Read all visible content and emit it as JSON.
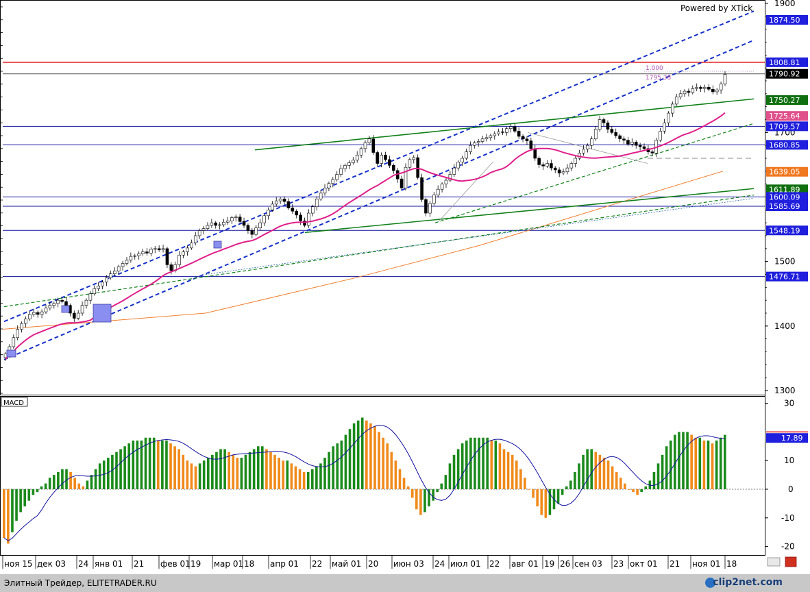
{
  "watermark": "Powered by XTick",
  "footer": {
    "site": "Элитный Трейдер, ELITETRADER.RU",
    "brand": "clip2net.com"
  },
  "panel_label": "MACD",
  "chart_data": [
    {
      "type": "candlestick",
      "title": "",
      "ylim": [
        1300,
        1900
      ],
      "y_ticks": [
        {
          "label": "1900",
          "value": 1900
        },
        {
          "label": "1700",
          "value": 1700
        },
        {
          "label": "1500",
          "value": 1500
        },
        {
          "label": "1400",
          "value": 1400
        },
        {
          "label": "1300",
          "value": 1300
        }
      ],
      "x_labels": [
        "ноя 15",
        "дек 03",
        "24",
        "янв 01",
        "21",
        "фев 01",
        "19",
        "мар 01",
        "18",
        "апр 01",
        "22",
        "май 01",
        "20",
        "июн 03",
        "24",
        "июл 01",
        "22",
        "авг 01",
        "19",
        "26",
        "сен 03",
        "23",
        "окт 01",
        "21",
        "ноя 01",
        "18"
      ],
      "price_levels": [
        {
          "value": 1874.5,
          "label": "1874.50",
          "color": "#1f1fdd",
          "line": false
        },
        {
          "value": 1808.81,
          "label": "1808.81",
          "color": "#1f1fdd",
          "line": true,
          "line_color": "#e01010"
        },
        {
          "value": 1790.92,
          "label": "1790.92",
          "color": "#000000",
          "line": true,
          "line_color": "#555555"
        },
        {
          "value": 1750.27,
          "label": "1750.27",
          "color": "#107010",
          "line": false
        },
        {
          "value": 1725.64,
          "label": "1725.64",
          "color": "#e0508a",
          "line": false
        },
        {
          "value": 1709.57,
          "label": "1709.57",
          "color": "#1f1fdd",
          "line": true,
          "line_color": "#1010a0"
        },
        {
          "value": 1680.85,
          "label": "1680.85",
          "color": "#1f1fdd",
          "line": true,
          "line_color": "#1010a0"
        },
        {
          "value": 1639.05,
          "label": "1639.05",
          "color": "#f07820",
          "line": false
        },
        {
          "value": 1611.89,
          "label": "1611.89",
          "color": "#107010",
          "line": false
        },
        {
          "value": 1600.09,
          "label": "1600.09",
          "color": "#1f1fdd",
          "line": true,
          "line_color": "#1010a0"
        },
        {
          "value": 1585.69,
          "label": "1585.69",
          "color": "#1f1fdd",
          "line": true,
          "line_color": "#1010a0"
        },
        {
          "value": 1548.19,
          "label": "1548.19",
          "color": "#1f1fdd",
          "line": true,
          "line_color": "#1010a0"
        },
        {
          "value": 1476.71,
          "label": "1476.71",
          "color": "#1f1fdd",
          "line": true,
          "line_color": "#1010a0"
        }
      ],
      "fib_labels": [
        "1.000",
        "1795.38"
      ],
      "close_series": [
        1357,
        1368,
        1382,
        1395,
        1404,
        1411,
        1418,
        1421,
        1418,
        1422,
        1428,
        1432,
        1435,
        1440,
        1438,
        1432,
        1420,
        1412,
        1420,
        1432,
        1440,
        1450,
        1458,
        1462,
        1468,
        1475,
        1481,
        1485,
        1492,
        1497,
        1502,
        1508,
        1509,
        1512,
        1515,
        1513,
        1519,
        1520,
        1518,
        1520,
        1495,
        1486,
        1495,
        1510,
        1515,
        1521,
        1529,
        1540,
        1548,
        1551,
        1556,
        1560,
        1556,
        1557,
        1561,
        1563,
        1568,
        1569,
        1562,
        1556,
        1548,
        1542,
        1552,
        1560,
        1571,
        1580,
        1589,
        1594,
        1597,
        1593,
        1583,
        1578,
        1572,
        1563,
        1556,
        1575,
        1585,
        1597,
        1606,
        1614,
        1621,
        1627,
        1635,
        1644,
        1649,
        1653,
        1657,
        1665,
        1675,
        1684,
        1690,
        1669,
        1652,
        1665,
        1658,
        1649,
        1641,
        1628,
        1614,
        1646,
        1658,
        1661,
        1630,
        1596,
        1575,
        1590,
        1603,
        1612,
        1620,
        1626,
        1635,
        1645,
        1654,
        1660,
        1670,
        1680,
        1684,
        1686,
        1690,
        1692,
        1695,
        1698,
        1701,
        1700,
        1706,
        1709,
        1702,
        1694,
        1690,
        1687,
        1675,
        1660,
        1650,
        1648,
        1652,
        1645,
        1642,
        1637,
        1639,
        1645,
        1652,
        1660,
        1668,
        1674,
        1680,
        1690,
        1705,
        1720,
        1715,
        1705,
        1700,
        1695,
        1690,
        1688,
        1682,
        1685,
        1680,
        1678,
        1675,
        1670,
        1668,
        1688,
        1702,
        1715,
        1730,
        1744,
        1755,
        1760,
        1764,
        1762,
        1768,
        1770,
        1768,
        1770,
        1767,
        1763,
        1766,
        1775,
        1790
      ]
    },
    {
      "type": "bar",
      "title": "MACD",
      "ylim": [
        -22,
        30
      ],
      "y_ticks": [
        {
          "label": "30",
          "value": 30
        },
        {
          "label": "10",
          "value": 10
        },
        {
          "label": "0",
          "value": 0
        },
        {
          "label": "-10",
          "value": -10
        },
        {
          "label": "-20",
          "value": -20
        }
      ],
      "badge": {
        "label": "17.89",
        "value": 17.89
      },
      "histogram": [
        -17,
        -19,
        -15,
        -11,
        -8,
        -6,
        -4,
        -2,
        -1,
        1,
        2,
        4,
        5,
        6,
        7,
        7,
        6,
        4,
        2,
        1,
        3,
        5,
        7,
        9,
        10,
        11,
        12,
        13,
        14,
        15,
        16,
        17,
        17,
        17,
        18,
        18,
        18,
        17,
        17,
        17,
        16,
        15,
        14,
        12,
        10,
        9,
        8,
        9,
        10,
        11,
        12,
        13,
        14,
        14,
        13,
        12,
        11,
        11,
        12,
        13,
        14,
        15,
        15,
        14,
        13,
        12,
        11,
        10,
        10,
        9,
        8,
        7,
        6,
        6,
        7,
        8,
        9,
        11,
        13,
        15,
        16,
        17,
        19,
        21,
        23,
        24,
        25,
        24,
        23,
        22,
        20,
        18,
        16,
        13,
        10,
        7,
        4,
        1,
        -3,
        -7,
        -9,
        -8,
        -6,
        -4,
        -1,
        2,
        5,
        9,
        12,
        14,
        16,
        17,
        18,
        18,
        18,
        18,
        18,
        17,
        17,
        16,
        14,
        13,
        12,
        10,
        7,
        4,
        0,
        -3,
        -6,
        -9,
        -10,
        -9,
        -7,
        -5,
        -2,
        1,
        3,
        6,
        9,
        12,
        14,
        14,
        13,
        12,
        11,
        10,
        8,
        6,
        4,
        2,
        0,
        -1,
        -2,
        -1,
        1,
        3,
        6,
        9,
        12,
        15,
        17,
        19,
        20,
        20,
        20,
        19,
        18,
        18,
        17,
        17,
        16,
        17,
        18,
        19
      ]
    }
  ]
}
